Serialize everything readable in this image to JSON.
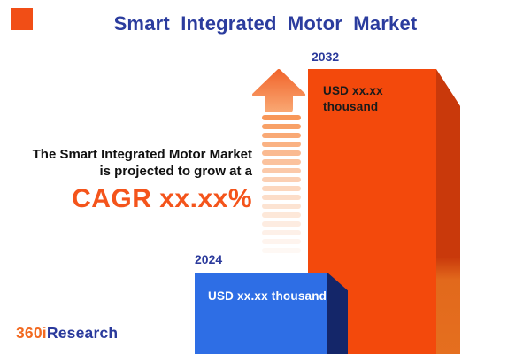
{
  "title": {
    "text": "Smart Integrated Motor Market",
    "color": "#2B3C9E"
  },
  "headline": {
    "line1": "The Smart Integrated Motor Market",
    "line2": "is projected to grow at a",
    "cagr": "CAGR xx.xx%",
    "cagr_color": "#F4541B",
    "text_color": "#101010"
  },
  "chart": {
    "bars": [
      {
        "year": "2024",
        "value_label": "USD xx.xx thousand",
        "face_color": "#2E6EE5",
        "side_color": "#142669",
        "label_color": "#FFFFFF"
      },
      {
        "year": "2032",
        "value_label": "USD xx.xx thousand",
        "face_color": "#F3490C",
        "side_color": "#C9390B",
        "label_color": "#1A1A1A"
      }
    ],
    "year_label_color": "#2B3A9C",
    "growth_arrow": {
      "icon": "arrow-up-icon",
      "head_color_top": "#F1662D",
      "head_color_bottom": "#F9A671",
      "stripe_count": 16,
      "stripe_color_start": "#F89758",
      "stripe_color_end": "#FDEFE6"
    }
  },
  "logo": {
    "part1": "360i",
    "part1_color": "#F26A21",
    "part2": "Research",
    "part2_color": "#2A3A9C"
  },
  "brand": {
    "square_color": "#F14E16"
  },
  "chart_data": {
    "type": "bar",
    "categories": [
      "2024",
      "2032"
    ],
    "values": [
      null,
      null
    ],
    "value_labels": [
      "USD xx.xx thousand",
      "USD xx.xx thousand"
    ],
    "series_colors": [
      "#2E6EE5",
      "#F3490C"
    ],
    "title": "Smart Integrated Motor Market",
    "annotation": "The Smart Integrated Motor Market is projected to grow at a CAGR xx.xx%",
    "legend": false,
    "axes": false
  }
}
